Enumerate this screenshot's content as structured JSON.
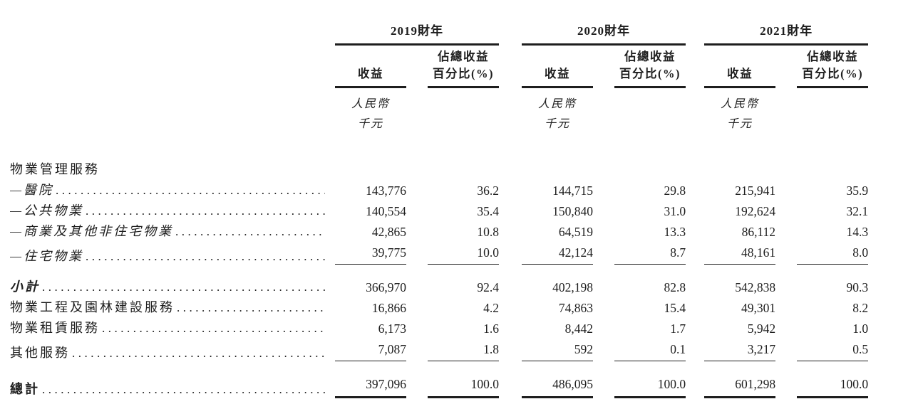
{
  "page": {
    "background": "#ffffff",
    "ink_color": "#1e1e1e"
  },
  "table": {
    "year_groups": [
      {
        "year": "2019財年",
        "revenue_header": "收益",
        "pct_header_line1": "佔總收益",
        "pct_header_line2": "百分比(%)",
        "unit_line1": "人民幣",
        "unit_line2": "千元"
      },
      {
        "year": "2020財年",
        "revenue_header": "收益",
        "pct_header_line1": "佔總收益",
        "pct_header_line2": "百分比(%)",
        "unit_line1": "人民幣",
        "unit_line2": "千元"
      },
      {
        "year": "2021財年",
        "revenue_header": "收益",
        "pct_header_line1": "佔總收益",
        "pct_header_line2": "百分比(%)",
        "unit_line1": "人民幣",
        "unit_line2": "千元"
      }
    ],
    "rows": [
      {
        "label": "物業管理服務",
        "style": "section",
        "dots": false,
        "values": null
      },
      {
        "label": "—醫院",
        "style": "sub",
        "dots": true,
        "values": [
          "143,776",
          "36.2",
          "144,715",
          "29.8",
          "215,941",
          "35.9"
        ]
      },
      {
        "label": "—公共物業",
        "style": "sub",
        "dots": true,
        "values": [
          "140,554",
          "35.4",
          "150,840",
          "31.0",
          "192,624",
          "32.1"
        ]
      },
      {
        "label": "—商業及其他非住宅物業",
        "style": "sub",
        "dots": true,
        "values": [
          "42,865",
          "10.8",
          "64,519",
          "13.3",
          "86,112",
          "14.3"
        ]
      },
      {
        "label": "—住宅物業",
        "style": "sub",
        "dots": true,
        "values": [
          "39,775",
          "10.0",
          "42,124",
          "8.7",
          "48,161",
          "8.0"
        ],
        "rule_below": true
      },
      {
        "label": "小計",
        "style": "subtotal",
        "dots": true,
        "values": [
          "366,970",
          "92.4",
          "402,198",
          "82.8",
          "542,838",
          "90.3"
        ],
        "gap_above": true
      },
      {
        "label": "物業工程及園林建設服務",
        "style": "normal",
        "dots": true,
        "values": [
          "16,866",
          "4.2",
          "74,863",
          "15.4",
          "49,301",
          "8.2"
        ]
      },
      {
        "label": "物業租賃服務",
        "style": "normal",
        "dots": true,
        "values": [
          "6,173",
          "1.6",
          "8,442",
          "1.7",
          "5,942",
          "1.0"
        ]
      },
      {
        "label": "其他服務",
        "style": "normal",
        "dots": true,
        "values": [
          "7,087",
          "1.8",
          "592",
          "0.1",
          "3,217",
          "0.5"
        ],
        "rule_below": true
      },
      {
        "label": "總計",
        "style": "total",
        "dots": true,
        "values": [
          "397,096",
          "100.0",
          "486,095",
          "100.0",
          "601,298",
          "100.0"
        ],
        "gap_above": true,
        "double_rule_below": true
      }
    ]
  },
  "chart_data": {
    "type": "table",
    "title": "",
    "categories": [
      "物業管理服務—醫院",
      "物業管理服務—公共物業",
      "物業管理服務—商業及其他非住宅物業",
      "物業管理服務—住宅物業",
      "小計",
      "物業工程及園林建設服務",
      "物業租賃服務",
      "其他服務",
      "總計"
    ],
    "series": [
      {
        "name": "2019財年 收益（人民幣千元）",
        "values": [
          143776,
          140554,
          42865,
          39775,
          366970,
          16866,
          6173,
          7087,
          397096
        ]
      },
      {
        "name": "2019財年 佔總收益百分比(%)",
        "values": [
          36.2,
          35.4,
          10.8,
          10.0,
          92.4,
          4.2,
          1.6,
          1.8,
          100.0
        ]
      },
      {
        "name": "2020財年 收益（人民幣千元）",
        "values": [
          144715,
          150840,
          64519,
          42124,
          402198,
          74863,
          8442,
          592,
          486095
        ]
      },
      {
        "name": "2020財年 佔總收益百分比(%)",
        "values": [
          29.8,
          31.0,
          13.3,
          8.7,
          82.8,
          15.4,
          1.7,
          0.1,
          100.0
        ]
      },
      {
        "name": "2021財年 收益（人民幣千元）",
        "values": [
          215941,
          192624,
          86112,
          48161,
          542838,
          49301,
          5942,
          3217,
          601298
        ]
      },
      {
        "name": "2021財年 佔總收益百分比(%)",
        "values": [
          35.9,
          32.1,
          14.3,
          8.0,
          90.3,
          8.2,
          1.0,
          0.5,
          100.0
        ]
      }
    ]
  }
}
